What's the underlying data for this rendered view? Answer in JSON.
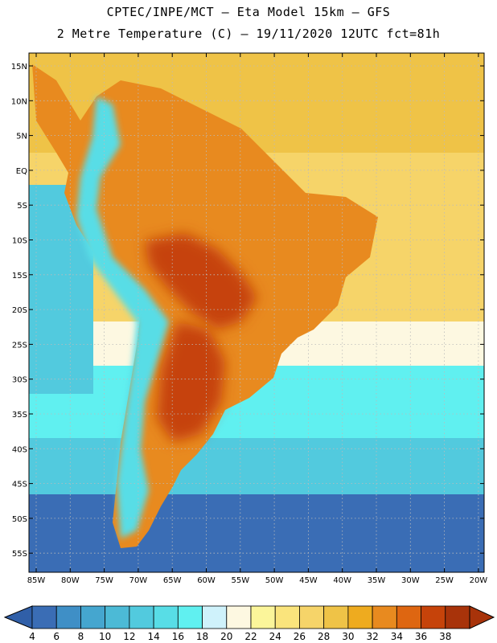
{
  "title": {
    "line1": "CPTEC/INPE/MCT –  Eta Model 15km – GFS",
    "line2": "2 Metre Temperature (C) – 19/11/2020 12UTC fct=81h"
  },
  "axes": {
    "lat_labels": [
      "15N",
      "10N",
      "5N",
      "EQ",
      "5S",
      "10S",
      "15S",
      "20S",
      "25S",
      "30S",
      "35S",
      "40S",
      "45S",
      "50S",
      "55S"
    ],
    "lon_labels": [
      "85W",
      "80W",
      "75W",
      "70W",
      "65W",
      "60W",
      "55W",
      "50W",
      "45W",
      "40W",
      "35W",
      "30W",
      "25W",
      "20W"
    ]
  },
  "colorbar": {
    "labels": [
      "4",
      "6",
      "8",
      "10",
      "12",
      "14",
      "16",
      "18",
      "20",
      "22",
      "24",
      "26",
      "28",
      "30",
      "32",
      "34",
      "36",
      "38"
    ],
    "colors": [
      "#3a6db5",
      "#3f8fc6",
      "#45a6cf",
      "#4cbad6",
      "#52cade",
      "#58dde6",
      "#60f0f0",
      "#cff2fb",
      "#fdf8e1",
      "#fbf59a",
      "#fae47c",
      "#f6d469",
      "#efc347",
      "#eeab1f",
      "#e88a1f",
      "#de6611",
      "#c6430a",
      "#a8330a"
    ],
    "end_low_color": "#305fa8",
    "end_high_color": "#a8330a"
  },
  "map": {
    "ocean_south_color": "#3a6db5",
    "ocean_mid_color": "#52cade",
    "ocean_cool_color": "#60f0f0",
    "ocean_warm_color": "#f6d469",
    "ocean_north_color": "#efc347",
    "land_hot_color": "#c6430a",
    "land_warm_color": "#e88a1f",
    "andes_color": "#58dde6"
  }
}
